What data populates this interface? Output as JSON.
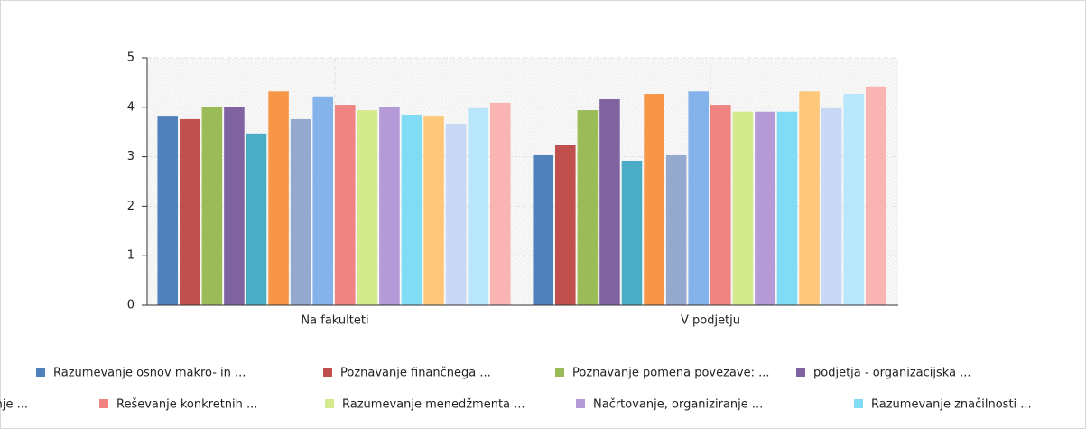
{
  "chart_data": {
    "type": "bar",
    "categories": [
      "Na fakulteti",
      "V podjetju"
    ],
    "ylim": [
      0,
      5
    ],
    "yticks": [
      0,
      1,
      2,
      3,
      4,
      5
    ],
    "grid": true,
    "series": [
      {
        "name": "Razumevanje osnov makro- in ...",
        "color": "#4f81bd",
        "values": [
          3.83,
          3.03
        ]
      },
      {
        "name": "Poznavanje finančnega ...",
        "color": "#c0504d",
        "values": [
          3.76,
          3.23
        ]
      },
      {
        "name": "Poznavanje pomena povezave: ...",
        "color": "#9bbb59",
        "values": [
          4.01,
          3.94
        ]
      },
      {
        "name": "podjetja -  organizacijska ...",
        "color": "#8064a2",
        "values": [
          4.01,
          4.16
        ]
      },
      {
        "color": "#4bacc6",
        "values": [
          3.47,
          2.92
        ]
      },
      {
        "color": "#f79646",
        "values": [
          4.32,
          4.27
        ]
      },
      {
        "color": "#95a9cf",
        "values": [
          3.76,
          3.03
        ]
      },
      {
        "name": "vanje ...",
        "color": "#84b2ea",
        "values": [
          4.22,
          4.32
        ]
      },
      {
        "name": "Reševanje konkretnih ...",
        "color": "#f08482",
        "values": [
          4.05,
          4.05
        ]
      },
      {
        "name": "Razumevanje menedžmenta ...",
        "color": "#d4ea8c",
        "values": [
          3.94,
          3.91
        ]
      },
      {
        "name": "Načrtovanje, organiziranje ...",
        "color": "#b49ad6",
        "values": [
          4.01,
          3.91
        ]
      },
      {
        "name": "Razumevanje značilnosti ...",
        "color": "#80dcf4",
        "values": [
          3.85,
          3.91
        ]
      },
      {
        "color": "#fdc87a",
        "values": [
          3.83,
          4.32
        ]
      },
      {
        "color": "#c8d8f5",
        "values": [
          3.67,
          3.98
        ]
      },
      {
        "color": "#b8e6fa",
        "values": [
          3.98,
          4.27
        ]
      },
      {
        "color": "#fbb4b4",
        "values": [
          4.09,
          4.42
        ]
      }
    ]
  }
}
